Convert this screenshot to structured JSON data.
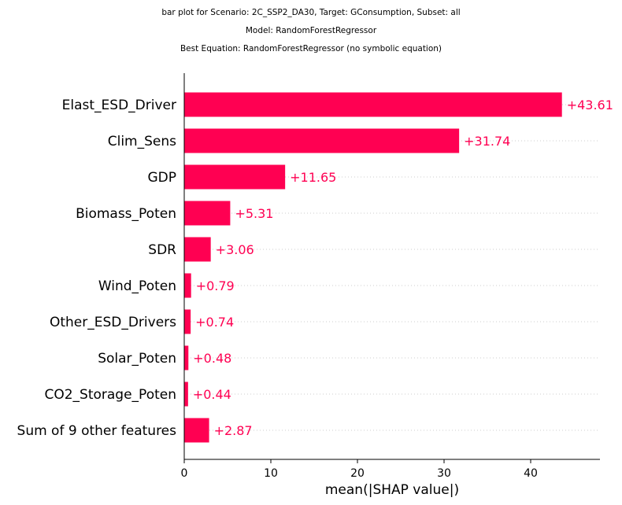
{
  "titles": [
    "bar plot for Scenario: 2C_SSP2_DA30, Target: GConsumption, Subset: all",
    "Model: RandomForestRegressor",
    "Best Equation: RandomForestRegressor (no symbolic equation)"
  ],
  "chart_data": {
    "type": "bar",
    "orientation": "horizontal",
    "categories": [
      "Elast_ESD_Driver",
      "Clim_Sens",
      "GDP",
      "Biomass_Poten",
      "SDR",
      "Wind_Poten",
      "Other_ESD_Drivers",
      "Solar_Poten",
      "CO2_Storage_Poten",
      "Sum of 9 other features"
    ],
    "values": [
      43.61,
      31.74,
      11.65,
      5.31,
      3.06,
      0.79,
      0.74,
      0.48,
      0.44,
      2.87
    ],
    "value_labels": [
      "+43.61",
      "+31.74",
      "+11.65",
      "+5.31",
      "+3.06",
      "+0.79",
      "+0.74",
      "+0.48",
      "+0.44",
      "+2.87"
    ],
    "xlabel": "mean(|SHAP value|)",
    "xticks": [
      "0",
      "10",
      "20",
      "30",
      "40"
    ],
    "xlim": [
      0,
      48
    ],
    "bar_color": "#ff0052",
    "grid": "dotted horizontal guide lines",
    "legend": "none"
  }
}
